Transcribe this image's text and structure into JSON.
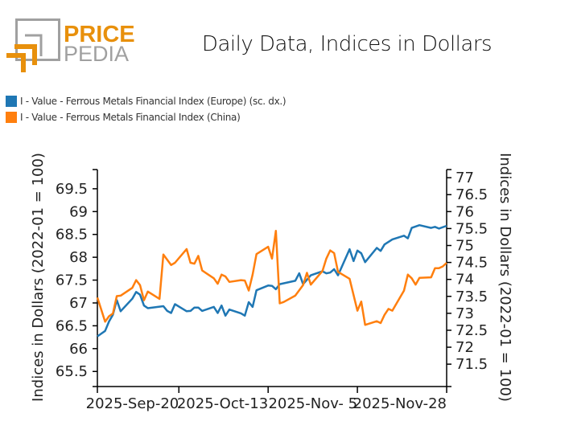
{
  "logo": {
    "text_top": "PRICE",
    "text_bottom": "PEDIA"
  },
  "title": "Daily Data, Indices in Dollars",
  "colors": {
    "europe": "#1f77b4",
    "china": "#ff7f0e",
    "logo_orange": "#e8900c",
    "logo_gray": "#a0a0a0"
  },
  "legend": [
    {
      "label": "I - Value - Ferrous Metals Financial Index (Europe) (sc. dx.)",
      "color": "#1f77b4"
    },
    {
      "label": "I - Value - Ferrous Metals Financial Index (China)",
      "color": "#ff7f0e"
    }
  ],
  "chart_data": {
    "type": "line",
    "title": "Daily Data, Indices in Dollars",
    "xlim": [
      "2025-08-30",
      "2025-11-28"
    ],
    "x_ticks": [
      "2025-09-20",
      "2025-10-13",
      "2025-11-05",
      "2025-11-28"
    ],
    "x_tick_labels": [
      "2025-Sep-20",
      "2025-Oct-13",
      "2025-Nov- 5",
      "2025-Nov-28"
    ],
    "y_left": {
      "label": "Indices in Dollars (2022-01 = 100)",
      "ylim": [
        65.17,
        69.92
      ],
      "ticks": [
        "65.5",
        "66",
        "66.5",
        "67",
        "67.5",
        "68",
        "68.5",
        "69",
        "69.5"
      ]
    },
    "y_right": {
      "label": "Indices in Dollars (2022-01 = 100)",
      "ylim": [
        70.84,
        77.24
      ],
      "ticks": [
        "71.5",
        "72",
        "72.5",
        "73",
        "73.5",
        "74",
        "74.5",
        "75",
        "75.5",
        "76",
        "76.5",
        "77"
      ]
    },
    "grid": false,
    "legend_position": "top-left",
    "series": [
      {
        "name": "I - Value - Ferrous Metals Financial Index (Europe) (sc. dx.)",
        "axis": "right",
        "color": "#1f77b4",
        "points": [
          [
            "2025-08-30",
            72.32
          ],
          [
            "2025-09-01",
            72.48
          ],
          [
            "2025-09-02",
            72.76
          ],
          [
            "2025-09-03",
            72.96
          ],
          [
            "2025-09-04",
            73.39
          ],
          [
            "2025-09-05",
            73.06
          ],
          [
            "2025-09-08",
            73.43
          ],
          [
            "2025-09-09",
            73.63
          ],
          [
            "2025-09-10",
            73.55
          ],
          [
            "2025-09-11",
            73.23
          ],
          [
            "2025-09-12",
            73.15
          ],
          [
            "2025-09-16",
            73.21
          ],
          [
            "2025-09-17",
            73.07
          ],
          [
            "2025-09-18",
            73.01
          ],
          [
            "2025-09-19",
            73.27
          ],
          [
            "2025-09-22",
            73.06
          ],
          [
            "2025-09-23",
            73.07
          ],
          [
            "2025-09-24",
            73.17
          ],
          [
            "2025-09-25",
            73.17
          ],
          [
            "2025-09-26",
            73.07
          ],
          [
            "2025-09-29",
            73.19
          ],
          [
            "2025-09-30",
            73.01
          ],
          [
            "2025-10-01",
            73.23
          ],
          [
            "2025-10-02",
            72.93
          ],
          [
            "2025-10-03",
            73.11
          ],
          [
            "2025-10-06",
            73.0
          ],
          [
            "2025-10-07",
            72.93
          ],
          [
            "2025-10-08",
            73.33
          ],
          [
            "2025-10-09",
            73.19
          ],
          [
            "2025-10-10",
            73.68
          ],
          [
            "2025-10-13",
            73.82
          ],
          [
            "2025-10-14",
            73.81
          ],
          [
            "2025-10-15",
            73.71
          ],
          [
            "2025-10-16",
            73.86
          ],
          [
            "2025-10-20",
            73.96
          ],
          [
            "2025-10-21",
            74.18
          ],
          [
            "2025-10-22",
            73.86
          ],
          [
            "2025-10-24",
            74.12
          ],
          [
            "2025-10-27",
            74.24
          ],
          [
            "2025-10-28",
            74.18
          ],
          [
            "2025-10-29",
            74.2
          ],
          [
            "2025-10-30",
            74.3
          ],
          [
            "2025-10-31",
            74.12
          ],
          [
            "2025-11-03",
            74.89
          ],
          [
            "2025-11-04",
            74.54
          ],
          [
            "2025-11-05",
            74.85
          ],
          [
            "2025-11-06",
            74.77
          ],
          [
            "2025-11-07",
            74.51
          ],
          [
            "2025-11-10",
            74.93
          ],
          [
            "2025-11-11",
            74.84
          ],
          [
            "2025-11-12",
            75.03
          ],
          [
            "2025-11-14",
            75.18
          ],
          [
            "2025-11-17",
            75.29
          ],
          [
            "2025-11-18",
            75.21
          ],
          [
            "2025-11-19",
            75.52
          ],
          [
            "2025-11-21",
            75.6
          ],
          [
            "2025-11-24",
            75.52
          ],
          [
            "2025-11-25",
            75.55
          ],
          [
            "2025-11-26",
            75.5
          ],
          [
            "2025-11-28",
            75.58
          ]
        ]
      },
      {
        "name": "I - Value - Ferrous Metals Financial Index (China)",
        "axis": "left",
        "color": "#ff7f0e",
        "points": [
          [
            "2025-08-30",
            67.12
          ],
          [
            "2025-09-01",
            66.59
          ],
          [
            "2025-09-02",
            66.71
          ],
          [
            "2025-09-03",
            66.77
          ],
          [
            "2025-09-04",
            67.15
          ],
          [
            "2025-09-05",
            67.16
          ],
          [
            "2025-09-08",
            67.33
          ],
          [
            "2025-09-09",
            67.5
          ],
          [
            "2025-09-10",
            67.39
          ],
          [
            "2025-09-11",
            67.06
          ],
          [
            "2025-09-12",
            67.25
          ],
          [
            "2025-09-15",
            67.09
          ],
          [
            "2025-09-16",
            68.06
          ],
          [
            "2025-09-18",
            67.83
          ],
          [
            "2025-09-19",
            67.88
          ],
          [
            "2025-09-22",
            68.18
          ],
          [
            "2025-09-23",
            67.88
          ],
          [
            "2025-09-24",
            67.86
          ],
          [
            "2025-09-25",
            68.03
          ],
          [
            "2025-09-26",
            67.71
          ],
          [
            "2025-09-29",
            67.54
          ],
          [
            "2025-09-30",
            67.42
          ],
          [
            "2025-10-01",
            67.62
          ],
          [
            "2025-10-02",
            67.58
          ],
          [
            "2025-10-03",
            67.46
          ],
          [
            "2025-10-06",
            67.5
          ],
          [
            "2025-10-07",
            67.49
          ],
          [
            "2025-10-08",
            67.27
          ],
          [
            "2025-10-09",
            67.62
          ],
          [
            "2025-10-10",
            68.07
          ],
          [
            "2025-10-13",
            68.23
          ],
          [
            "2025-10-14",
            67.97
          ],
          [
            "2025-10-15",
            68.58
          ],
          [
            "2025-10-16",
            66.99
          ],
          [
            "2025-10-17",
            67.02
          ],
          [
            "2025-10-20",
            67.16
          ],
          [
            "2025-10-22",
            67.39
          ],
          [
            "2025-10-23",
            67.66
          ],
          [
            "2025-10-24",
            67.4
          ],
          [
            "2025-10-27",
            67.7
          ],
          [
            "2025-10-28",
            67.97
          ],
          [
            "2025-10-29",
            68.15
          ],
          [
            "2025-10-30",
            68.09
          ],
          [
            "2025-10-31",
            67.68
          ],
          [
            "2025-11-03",
            67.53
          ],
          [
            "2025-11-05",
            66.83
          ],
          [
            "2025-11-06",
            67.03
          ],
          [
            "2025-11-07",
            66.52
          ],
          [
            "2025-11-10",
            66.6
          ],
          [
            "2025-11-11",
            66.56
          ],
          [
            "2025-11-12",
            66.74
          ],
          [
            "2025-11-13",
            66.87
          ],
          [
            "2025-11-14",
            66.83
          ],
          [
            "2025-11-17",
            67.27
          ],
          [
            "2025-11-18",
            67.62
          ],
          [
            "2025-11-19",
            67.54
          ],
          [
            "2025-11-20",
            67.4
          ],
          [
            "2025-11-21",
            67.55
          ],
          [
            "2025-11-24",
            67.56
          ],
          [
            "2025-11-25",
            67.76
          ],
          [
            "2025-11-26",
            67.76
          ],
          [
            "2025-11-27",
            67.8
          ],
          [
            "2025-11-28",
            67.88
          ]
        ]
      }
    ]
  }
}
